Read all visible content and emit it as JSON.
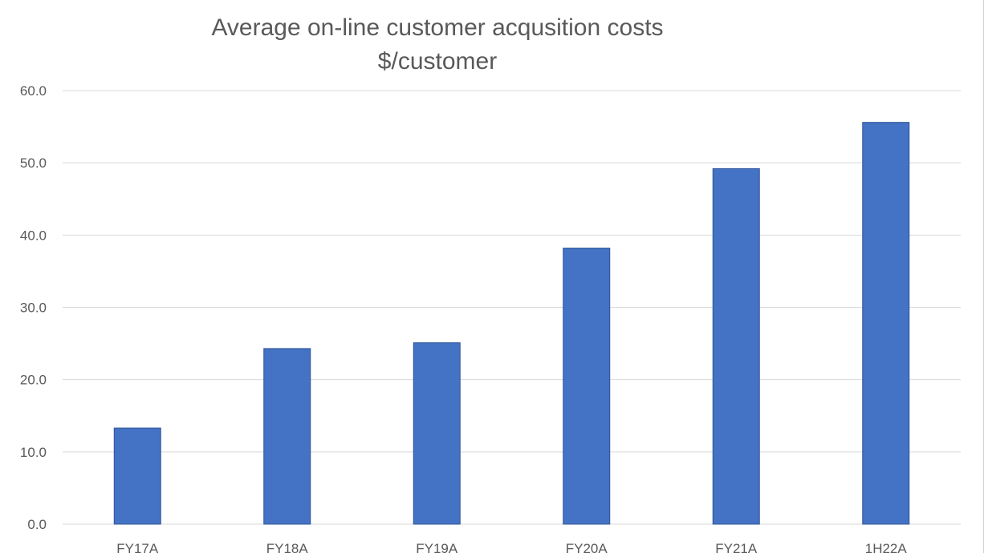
{
  "chart_data": {
    "type": "bar",
    "title": "Average on-line customer acqusition costs",
    "subtitle": "$/customer",
    "xlabel": "",
    "ylabel": "",
    "categories": [
      "FY17A",
      "FY18A",
      "FY19A",
      "FY20A",
      "FY21A",
      "1H22A"
    ],
    "values": [
      13.3,
      24.3,
      25.1,
      38.2,
      49.2,
      55.6
    ],
    "ylim": [
      0,
      60
    ],
    "yticks": [
      "0.0",
      "10.0",
      "20.0",
      "30.0",
      "40.0",
      "50.0",
      "60.0"
    ],
    "grid": true,
    "legend": "none",
    "colors": {
      "bar": "#4472C4",
      "bar_edge": "#2F5597",
      "grid": "#D9D9D9",
      "text": "#595959"
    }
  }
}
